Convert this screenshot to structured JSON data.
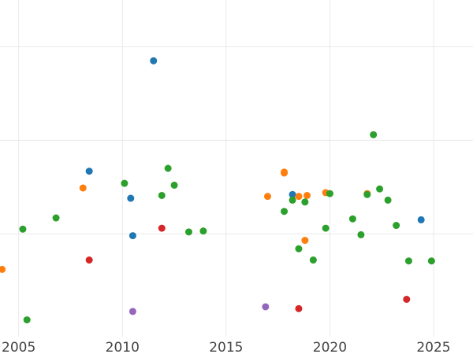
{
  "chart_data": {
    "type": "scatter",
    "title": "",
    "xlabel": "",
    "ylabel": "",
    "xlim": [
      2004.1,
      2026.9
    ],
    "ylim": [
      -0.1,
      3.5
    ],
    "x_ticks": [
      2005,
      2010,
      2015,
      2020,
      2025
    ],
    "x_tick_labels": [
      "2005",
      "2010",
      "2015",
      "2020",
      "2025"
    ],
    "y_ticks": [
      1,
      2,
      3
    ],
    "y_tick_labels": [],
    "grid": true,
    "legend": "none",
    "series": [
      {
        "color": "#1f77b4",
        "points": [
          {
            "x": 2011.5,
            "y": 2.85
          },
          {
            "x": 2008.4,
            "y": 1.67
          },
          {
            "x": 2010.4,
            "y": 1.38
          },
          {
            "x": 2010.5,
            "y": 0.98
          },
          {
            "x": 2018.2,
            "y": 1.42
          },
          {
            "x": 2024.4,
            "y": 1.15
          }
        ]
      },
      {
        "color": "#ff7f0e",
        "points": [
          {
            "x": 2004.2,
            "y": 0.62
          },
          {
            "x": 2008.1,
            "y": 1.49
          },
          {
            "x": 2017.0,
            "y": 1.4
          },
          {
            "x": 2017.8,
            "y": 1.66
          },
          {
            "x": 2017.8,
            "y": 1.65
          },
          {
            "x": 2018.5,
            "y": 1.4
          },
          {
            "x": 2018.8,
            "y": 0.93
          },
          {
            "x": 2018.9,
            "y": 1.41
          },
          {
            "x": 2019.8,
            "y": 1.44
          },
          {
            "x": 2021.8,
            "y": 1.43
          }
        ]
      },
      {
        "color": "#2ca02c",
        "points": [
          {
            "x": 2005.2,
            "y": 1.05
          },
          {
            "x": 2005.4,
            "y": 0.08
          },
          {
            "x": 2006.8,
            "y": 1.17
          },
          {
            "x": 2010.1,
            "y": 1.54
          },
          {
            "x": 2011.9,
            "y": 1.41
          },
          {
            "x": 2012.2,
            "y": 1.7
          },
          {
            "x": 2012.5,
            "y": 1.52
          },
          {
            "x": 2013.2,
            "y": 1.02
          },
          {
            "x": 2013.9,
            "y": 1.03
          },
          {
            "x": 2017.8,
            "y": 1.24
          },
          {
            "x": 2018.2,
            "y": 1.36
          },
          {
            "x": 2018.5,
            "y": 0.84
          },
          {
            "x": 2018.8,
            "y": 1.34
          },
          {
            "x": 2019.2,
            "y": 0.72
          },
          {
            "x": 2019.8,
            "y": 1.06
          },
          {
            "x": 2020.0,
            "y": 1.43
          },
          {
            "x": 2021.1,
            "y": 1.16
          },
          {
            "x": 2021.5,
            "y": 0.99
          },
          {
            "x": 2021.8,
            "y": 1.42
          },
          {
            "x": 2022.1,
            "y": 2.06
          },
          {
            "x": 2022.4,
            "y": 1.48
          },
          {
            "x": 2022.8,
            "y": 1.36
          },
          {
            "x": 2023.2,
            "y": 1.09
          },
          {
            "x": 2023.8,
            "y": 0.71
          },
          {
            "x": 2024.9,
            "y": 0.71
          }
        ]
      },
      {
        "color": "#d62728",
        "points": [
          {
            "x": 2008.4,
            "y": 0.72
          },
          {
            "x": 2011.9,
            "y": 1.06
          },
          {
            "x": 2018.5,
            "y": 0.2
          },
          {
            "x": 2023.7,
            "y": 0.3
          }
        ]
      },
      {
        "color": "#9467bd",
        "points": [
          {
            "x": 2010.5,
            "y": 0.17
          },
          {
            "x": 2016.9,
            "y": 0.22
          }
        ]
      }
    ]
  }
}
